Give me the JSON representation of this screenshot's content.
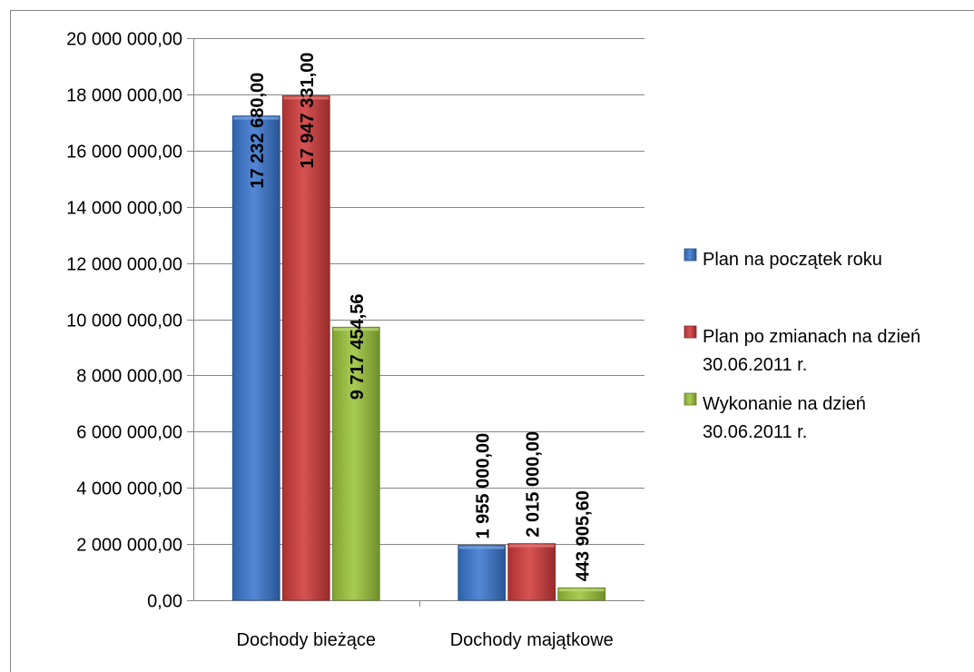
{
  "chart_data": {
    "type": "bar",
    "categories": [
      "Dochody bieżące",
      "Dochody majątkowe"
    ],
    "series": [
      {
        "name": "Plan na początek roku",
        "values": [
          17232680.0,
          1955000.0
        ],
        "labels": [
          "17 232 680,00",
          "1 955 000,00"
        ],
        "color": "#3B78D0"
      },
      {
        "name": "Plan po zmianach na dzień 30.06.2011 r.",
        "values": [
          17947331.0,
          2015000.0
        ],
        "labels": [
          "17 947 331,00",
          "2 015 000,00"
        ],
        "color": "#D23C3C"
      },
      {
        "name": "Wykonanie na dzień 30.06.2011 r.",
        "values": [
          9717454.56,
          443905.6
        ],
        "labels": [
          "9 717 454,56",
          "443 905,60"
        ],
        "color": "#9CC63B"
      }
    ],
    "legend_lines": [
      [
        "Plan na początek roku"
      ],
      [
        "Plan po zmianach na dzień",
        "30.06.2011 r."
      ],
      [
        "Wykonanie na dzień",
        "30.06.2011 r."
      ]
    ],
    "yticks": [
      0,
      2000000,
      4000000,
      6000000,
      8000000,
      10000000,
      12000000,
      14000000,
      16000000,
      18000000,
      20000000
    ],
    "ytick_labels": [
      "0,00",
      "2 000 000,00",
      "4 000 000,00",
      "6 000 000,00",
      "8 000 000,00",
      "10 000 000,00",
      "12 000 000,00",
      "14 000 000,00",
      "16 000 000,00",
      "18 000 000,00",
      "20 000 000,00"
    ],
    "ylim": [
      0,
      20000000
    ],
    "grid": true,
    "legend_position": "right",
    "title": "",
    "xlabel": "",
    "ylabel": ""
  }
}
